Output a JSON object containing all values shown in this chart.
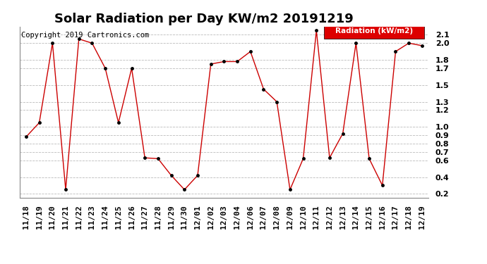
{
  "title": "Solar Radiation per Day KW/m2 20191219",
  "copyright": "Copyright 2019 Cartronics.com",
  "legend_label": "Radiation (kW/m2)",
  "dates": [
    "11/18",
    "11/19",
    "11/20",
    "11/21",
    "11/22",
    "11/23",
    "11/24",
    "11/25",
    "11/26",
    "11/27",
    "11/28",
    "11/29",
    "11/30",
    "12/01",
    "12/02",
    "12/03",
    "12/04",
    "12/06",
    "12/07",
    "12/08",
    "12/09",
    "12/10",
    "12/11",
    "12/12",
    "12/13",
    "12/14",
    "12/15",
    "12/16",
    "12/17",
    "12/18",
    "12/19"
  ],
  "values": [
    0.88,
    1.05,
    2.0,
    0.25,
    2.05,
    2.0,
    1.7,
    1.05,
    1.7,
    0.63,
    0.62,
    0.42,
    0.25,
    0.42,
    1.75,
    1.78,
    1.78,
    1.9,
    1.45,
    1.3,
    0.25,
    0.62,
    2.15,
    0.63,
    0.92,
    2.0,
    0.62,
    0.3,
    1.9,
    2.0,
    1.97
  ],
  "line_color": "#cc0000",
  "marker_color": "#000000",
  "background_color": "#ffffff",
  "grid_color": "#bbbbbb",
  "legend_bg": "#dd0000",
  "legend_text_color": "#ffffff",
  "ylim": [
    0.15,
    2.2
  ],
  "yticks": [
    0.2,
    0.4,
    0.6,
    0.7,
    0.8,
    0.9,
    1.0,
    1.2,
    1.3,
    1.5,
    1.7,
    1.8,
    2.0,
    2.1
  ],
  "title_fontsize": 13,
  "tick_fontsize": 8,
  "copyright_fontsize": 7.5
}
